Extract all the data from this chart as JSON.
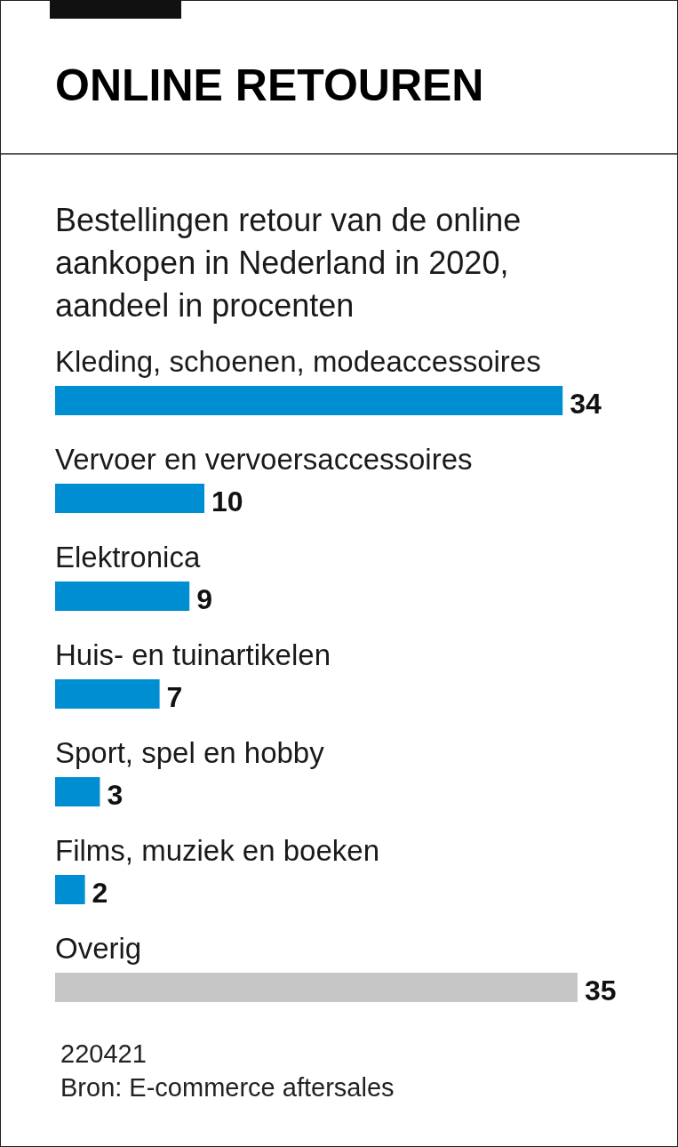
{
  "chart_data": {
    "type": "bar",
    "orientation": "horizontal",
    "title": "ONLINE RETOUREN",
    "subtitle": "Bestellingen retour van de online aankopen in Nederland in 2020, aandeel in procenten",
    "categories": [
      "Kleding, schoenen, modeaccessoires",
      "Vervoer en vervoersaccessoires",
      "Elektronica",
      "Huis- en tuinartikelen",
      "Sport, spel en hobby",
      "Films, muziek en boeken",
      "Overig"
    ],
    "values": [
      34,
      10,
      9,
      7,
      3,
      2,
      35
    ],
    "colors": [
      "#008ed3",
      "#008ed3",
      "#008ed3",
      "#008ed3",
      "#008ed3",
      "#008ed3",
      "#c6c6c6"
    ],
    "data_labels": true,
    "annotations": [
      "220421",
      "Bron: E-commerce aftersales"
    ]
  }
}
